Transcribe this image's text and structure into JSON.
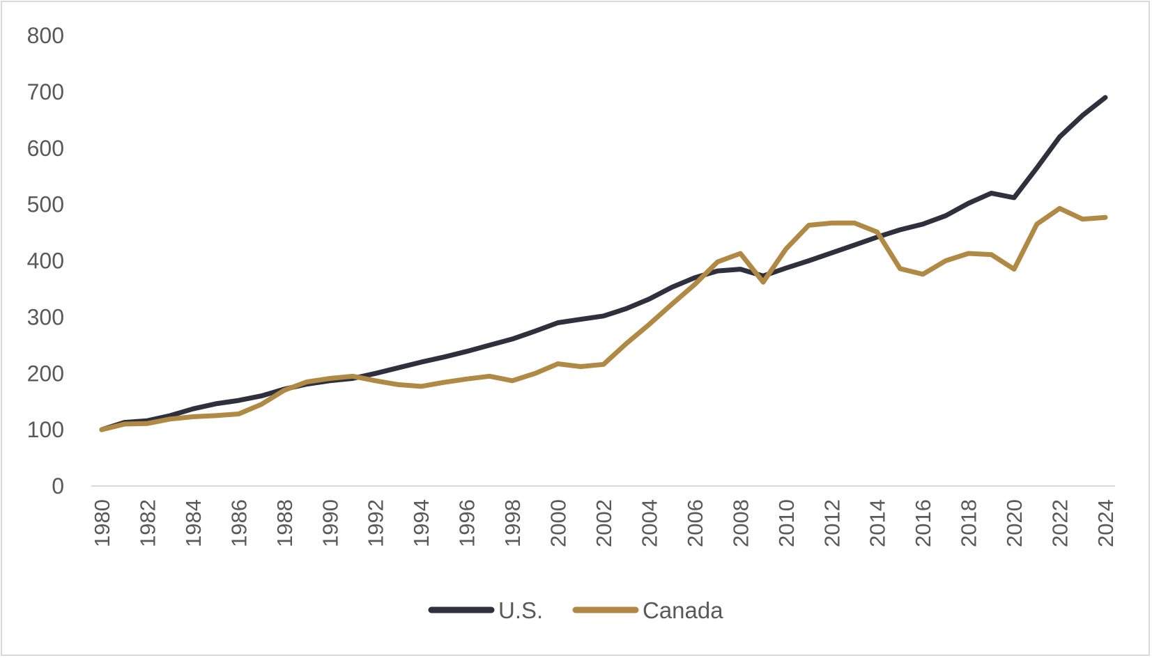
{
  "chart_data": {
    "type": "line",
    "title": "",
    "xlabel": "",
    "ylabel": "",
    "ylim": [
      0,
      800
    ],
    "yticks": [
      0,
      100,
      200,
      300,
      400,
      500,
      600,
      700,
      800
    ],
    "x": [
      1980,
      1981,
      1982,
      1983,
      1984,
      1985,
      1986,
      1987,
      1988,
      1989,
      1990,
      1991,
      1992,
      1993,
      1994,
      1995,
      1996,
      1997,
      1998,
      1999,
      2000,
      2001,
      2002,
      2003,
      2004,
      2005,
      2006,
      2007,
      2008,
      2009,
      2010,
      2011,
      2012,
      2013,
      2014,
      2015,
      2016,
      2017,
      2018,
      2019,
      2020,
      2021,
      2022,
      2023,
      2024
    ],
    "xtick_labels": [
      "1980",
      "1982",
      "1984",
      "1986",
      "1988",
      "1990",
      "1992",
      "1994",
      "1996",
      "1998",
      "2000",
      "2002",
      "2004",
      "2006",
      "2008",
      "2010",
      "2012",
      "2014",
      "2016",
      "2018",
      "2020",
      "2022",
      "2024"
    ],
    "grid": false,
    "legend_position": "bottom",
    "series": [
      {
        "name": "U.S.",
        "color": "#2e313d",
        "values": [
          100,
          113,
          116,
          125,
          137,
          146,
          152,
          160,
          172,
          181,
          187,
          191,
          200,
          210,
          220,
          229,
          239,
          250,
          261,
          275,
          290,
          296,
          302,
          315,
          332,
          353,
          370,
          382,
          385,
          373,
          387,
          400,
          414,
          428,
          442,
          455,
          465,
          480,
          502,
          520,
          512,
          565,
          620,
          658,
          690
        ]
      },
      {
        "name": "Canada",
        "color": "#b08a45",
        "values": [
          100,
          110,
          111,
          119,
          123,
          125,
          128,
          145,
          170,
          185,
          191,
          195,
          187,
          180,
          177,
          184,
          190,
          195,
          187,
          200,
          217,
          212,
          216,
          253,
          287,
          323,
          358,
          398,
          413,
          362,
          421,
          463,
          467,
          467,
          451,
          386,
          376,
          400,
          413,
          411,
          385,
          465,
          493,
          474,
          477
        ]
      }
    ]
  }
}
